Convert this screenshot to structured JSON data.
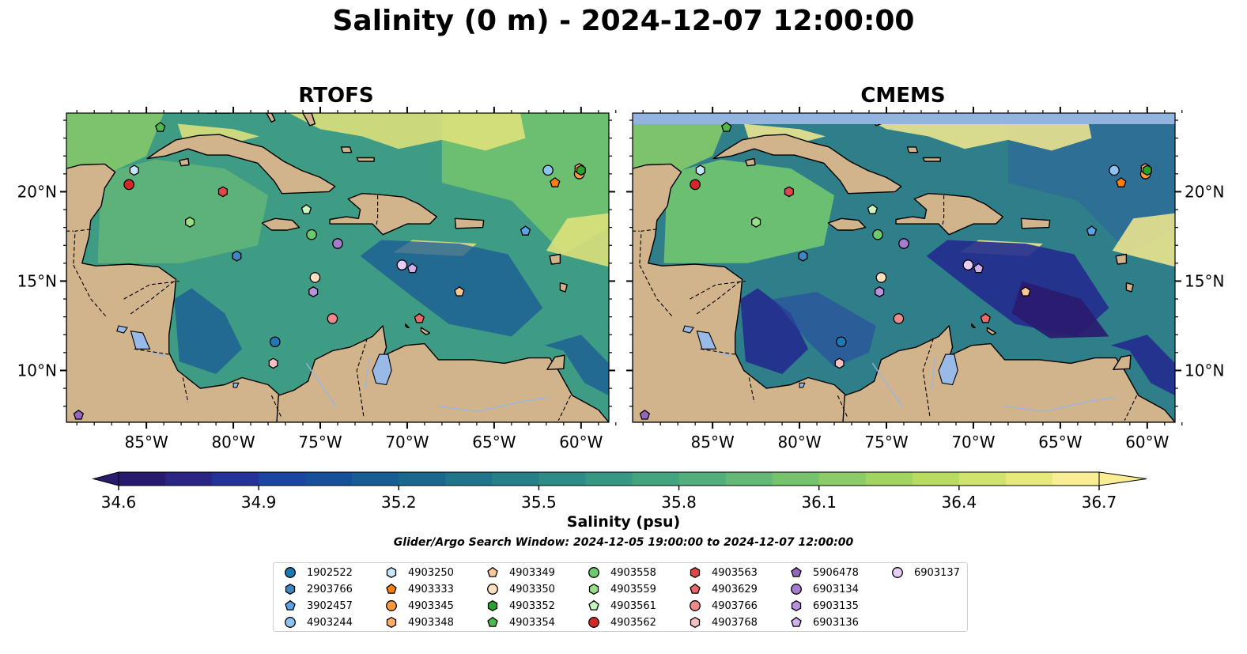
{
  "title": "Salinity (0 m) - 2024-12-07 12:00:00",
  "panels": [
    {
      "title": "RTOFS"
    },
    {
      "title": "CMEMS"
    }
  ],
  "lon_labels": [
    "85°W",
    "80°W",
    "75°W",
    "70°W",
    "65°W",
    "60°W"
  ],
  "lat_labels": [
    "20°N",
    "15°N",
    "10°N"
  ],
  "map_extent": {
    "lon": [
      -89.6,
      -58.4
    ],
    "lat": [
      7.1,
      24.4
    ]
  },
  "colorbar": {
    "label": "Salinity (psu)",
    "ticks": [
      "34.6",
      "34.9",
      "35.2",
      "35.5",
      "35.8",
      "36.1",
      "36.4",
      "36.7"
    ],
    "range": [
      34.6,
      36.7
    ],
    "extend": "both",
    "colormap": "haline",
    "colors": [
      "#2a1a6e",
      "#2b2686",
      "#24339a",
      "#1a45a0",
      "#164f9a",
      "#165d94",
      "#19698e",
      "#1f758b",
      "#258088",
      "#2d8c86",
      "#379884",
      "#43a480",
      "#52af7b",
      "#63b975",
      "#76c36d",
      "#8bcc66",
      "#a1d460",
      "#b8dc62",
      "#d0e36c",
      "#e7e97c",
      "#f9ee93"
    ]
  },
  "search_window": "Glider/Argo Search Window: 2024-12-05 19:00:00 to 2024-12-07 12:00:00",
  "platforms": [
    {
      "id": "1902522",
      "marker": "circle",
      "color": "#1f77b4",
      "lon": -77.6,
      "lat": 11.6
    },
    {
      "id": "2903766",
      "marker": "hexagon",
      "color": "#3f86c6",
      "lon": -79.8,
      "lat": 16.4
    },
    {
      "id": "3902457",
      "marker": "pentagon",
      "color": "#5aa3e6",
      "lon": -63.2,
      "lat": 17.8
    },
    {
      "id": "4903244",
      "marker": "circle",
      "color": "#8ec3f0",
      "lon": -61.9,
      "lat": 21.2
    },
    {
      "id": "4903250",
      "marker": "hexagon",
      "color": "#c6e6fb",
      "lon": -85.7,
      "lat": 21.2
    },
    {
      "id": "4903333",
      "marker": "pentagon",
      "color": "#ff7f0e",
      "lon": -61.5,
      "lat": 20.5
    },
    {
      "id": "4903345",
      "marker": "circle",
      "color": "#ff9a3c",
      "lon": -60.1,
      "lat": 21.0
    },
    {
      "id": "4903348",
      "marker": "hexagon",
      "color": "#ffb066",
      "lon": -60.1,
      "lat": 21.3
    },
    {
      "id": "4903349",
      "marker": "pentagon",
      "color": "#ffc896",
      "lon": -67.0,
      "lat": 14.4
    },
    {
      "id": "4903350",
      "marker": "circle",
      "color": "#ffe0c0",
      "lon": -75.3,
      "lat": 15.2
    },
    {
      "id": "4903352",
      "marker": "hexagon",
      "color": "#2ca02c",
      "lon": -60.0,
      "lat": 21.2
    },
    {
      "id": "4903354",
      "marker": "pentagon",
      "color": "#4cbb4c",
      "lon": -84.2,
      "lat": 23.6
    },
    {
      "id": "4903558",
      "marker": "circle",
      "color": "#6cc96c",
      "lon": -75.5,
      "lat": 17.6
    },
    {
      "id": "4903559",
      "marker": "hexagon",
      "color": "#98df8a",
      "lon": -82.5,
      "lat": 18.3
    },
    {
      "id": "4903561",
      "marker": "pentagon",
      "color": "#c8f5c0",
      "lon": -75.8,
      "lat": 19.0
    },
    {
      "id": "4903562",
      "marker": "circle",
      "color": "#d62728",
      "lon": -86.0,
      "lat": 20.4
    },
    {
      "id": "4903563",
      "marker": "hexagon",
      "color": "#e04848",
      "lon": -80.6,
      "lat": 20.0
    },
    {
      "id": "4903629",
      "marker": "pentagon",
      "color": "#ea6a6a",
      "lon": -69.3,
      "lat": 12.9
    },
    {
      "id": "4903766",
      "marker": "circle",
      "color": "#f08a8a",
      "lon": -74.3,
      "lat": 12.9
    },
    {
      "id": "4903768",
      "marker": "hexagon",
      "color": "#f8c0c0",
      "lon": -77.7,
      "lat": 10.4
    },
    {
      "id": "5906478",
      "marker": "pentagon",
      "color": "#9467bd",
      "lon": -88.9,
      "lat": 7.5
    },
    {
      "id": "6903134",
      "marker": "circle",
      "color": "#a67ccc",
      "lon": -74.0,
      "lat": 17.1
    },
    {
      "id": "6903135",
      "marker": "hexagon",
      "color": "#b892dc",
      "lon": -75.4,
      "lat": 14.4
    },
    {
      "id": "6903136",
      "marker": "pentagon",
      "color": "#d0b0ec",
      "lon": -69.7,
      "lat": 15.7
    },
    {
      "id": "6903137",
      "marker": "circle",
      "color": "#e6ccf6",
      "lon": -70.3,
      "lat": 15.9
    }
  ]
}
